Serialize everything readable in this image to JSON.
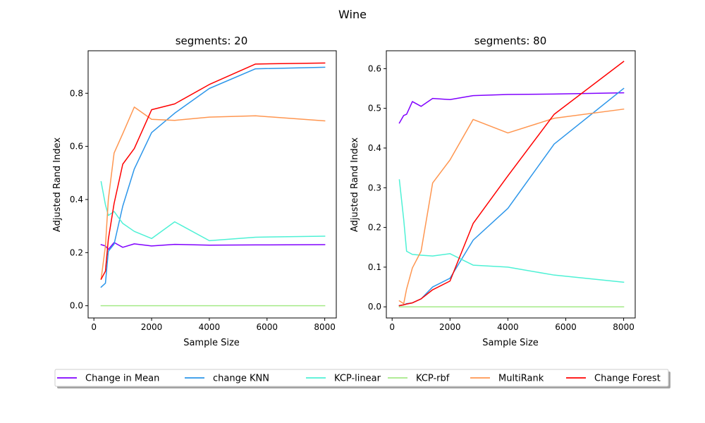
{
  "figure_title": "Wine",
  "colors": {
    "Change in Mean": "#8000ff",
    "change KNN": "#2c96ea",
    "KCP-linear": "#4ef1d5",
    "KCP-rbf": "#a4ea87",
    "MultiRank": "#ff9650",
    "Change Forest": "#ff0000"
  },
  "legend": {
    "placement": "bottom-center",
    "entries": [
      "Change in Mean",
      "change KNN",
      "KCP-linear",
      "KCP-rbf",
      "MultiRank",
      "Change Forest"
    ]
  },
  "chart_data": [
    {
      "type": "line",
      "title": "segments: 20",
      "xlabel": "Sample Size",
      "ylabel": "Adjusted Rand Index",
      "xlim": [
        -200,
        8400
      ],
      "ylim": [
        -0.046,
        0.96
      ],
      "xticks": [
        0,
        2000,
        4000,
        6000,
        8000
      ],
      "xtick_labels": [
        "0",
        "2000",
        "4000",
        "6000",
        "8000"
      ],
      "yticks": [
        0.0,
        0.2,
        0.4,
        0.6,
        0.8
      ],
      "ytick_labels": [
        "0.0",
        "0.2",
        "0.4",
        "0.6",
        "0.8"
      ],
      "grid": false,
      "x": [
        250,
        400,
        500,
        700,
        1000,
        1400,
        2000,
        2800,
        4000,
        5600,
        8000
      ],
      "series": [
        {
          "name": "Change in Mean",
          "values": [
            0.23,
            0.225,
            0.212,
            0.238,
            0.22,
            0.233,
            0.225,
            0.231,
            0.228,
            0.229,
            0.23
          ]
        },
        {
          "name": "change KNN",
          "values": [
            0.07,
            0.085,
            0.205,
            0.232,
            0.375,
            0.515,
            0.652,
            0.725,
            0.818,
            0.892,
            0.898
          ]
        },
        {
          "name": "KCP-linear",
          "values": [
            0.467,
            0.38,
            0.34,
            0.355,
            0.31,
            0.28,
            0.253,
            0.316,
            0.245,
            0.258,
            0.262
          ]
        },
        {
          "name": "KCP-rbf",
          "values": [
            0.0,
            0.0,
            0.0,
            0.0,
            0.0,
            0.0,
            0.0,
            0.0,
            0.0,
            0.0,
            0.0
          ]
        },
        {
          "name": "MultiRank",
          "values": [
            0.1,
            0.225,
            0.4,
            0.575,
            0.648,
            0.748,
            0.702,
            0.698,
            0.71,
            0.715,
            0.696
          ]
        },
        {
          "name": "Change Forest",
          "values": [
            0.1,
            0.13,
            0.25,
            0.385,
            0.533,
            0.592,
            0.738,
            0.76,
            0.833,
            0.91,
            0.914
          ]
        }
      ]
    },
    {
      "type": "line",
      "title": "segments: 80",
      "xlabel": "Sample Size",
      "ylabel": "Adjusted Rand Index",
      "xlim": [
        -200,
        8400
      ],
      "ylim": [
        -0.028,
        0.645
      ],
      "xticks": [
        0,
        2000,
        4000,
        6000,
        8000
      ],
      "xtick_labels": [
        "0",
        "2000",
        "4000",
        "6000",
        "8000"
      ],
      "yticks": [
        0.0,
        0.1,
        0.2,
        0.3,
        0.4,
        0.5,
        0.6
      ],
      "ytick_labels": [
        "0.0",
        "0.1",
        "0.2",
        "0.3",
        "0.4",
        "0.5",
        "0.6"
      ],
      "grid": false,
      "x": [
        250,
        400,
        500,
        700,
        1000,
        1400,
        2000,
        2800,
        4000,
        5600,
        8000
      ],
      "series": [
        {
          "name": "Change in Mean",
          "values": [
            0.463,
            0.482,
            0.485,
            0.517,
            0.505,
            0.525,
            0.522,
            0.532,
            0.535,
            0.536,
            0.539
          ]
        },
        {
          "name": "change KNN",
          "values": [
            0.003,
            0.005,
            0.008,
            0.01,
            0.02,
            0.05,
            0.072,
            0.168,
            0.248,
            0.41,
            0.55
          ]
        },
        {
          "name": "KCP-linear",
          "values": [
            0.32,
            0.22,
            0.14,
            0.132,
            0.13,
            0.128,
            0.134,
            0.105,
            0.1,
            0.08,
            0.062
          ]
        },
        {
          "name": "KCP-rbf",
          "values": [
            0.0,
            0.0,
            0.0,
            0.0,
            0.0,
            0.0,
            0.0,
            0.0,
            0.0,
            0.0,
            0.0
          ]
        },
        {
          "name": "MultiRank",
          "values": [
            0.015,
            0.008,
            0.045,
            0.098,
            0.14,
            0.312,
            0.37,
            0.472,
            0.438,
            0.475,
            0.498
          ]
        },
        {
          "name": "Change Forest",
          "values": [
            0.003,
            0.005,
            0.007,
            0.01,
            0.02,
            0.043,
            0.065,
            0.21,
            0.33,
            0.485,
            0.618
          ]
        }
      ]
    }
  ]
}
